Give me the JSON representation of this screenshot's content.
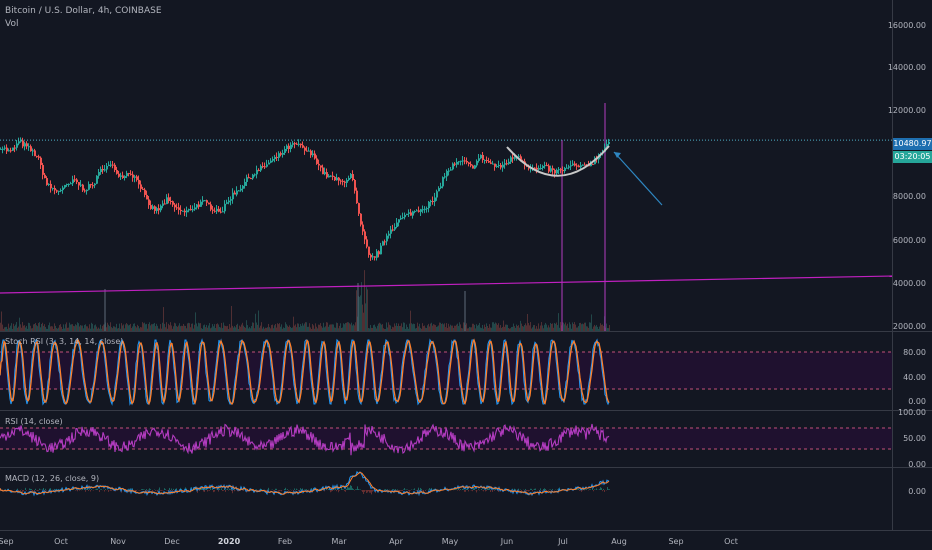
{
  "header": {
    "symbol": "Bitcoin / U.S. Dollar, 4h, COINBASE",
    "volume_label": "Vol"
  },
  "indicators": {
    "stoch_rsi": "Stoch RSI (3, 3, 14, 14, close)",
    "rsi": "RSI (14, close)",
    "macd": "MACD (12, 26, close, 9)"
  },
  "price_scale": {
    "ticks": [
      "16000.00",
      "14000.00",
      "12000.00",
      "10480.97",
      "8000.00",
      "6000.00",
      "4000.00",
      "2000.00"
    ],
    "last_price": "10480.97",
    "countdown": "03:20:05"
  },
  "stoch_scale": [
    "80.00",
    "40.00",
    "0.00"
  ],
  "rsi_scale": [
    "100.00",
    "50.00",
    "0.00"
  ],
  "macd_scale": [
    "0.00"
  ],
  "time_axis": [
    {
      "label": "Sep",
      "bold": false
    },
    {
      "label": "Oct",
      "bold": false
    },
    {
      "label": "Nov",
      "bold": false
    },
    {
      "label": "Dec",
      "bold": false
    },
    {
      "label": "2020",
      "bold": true
    },
    {
      "label": "Feb",
      "bold": false
    },
    {
      "label": "Mar",
      "bold": false
    },
    {
      "label": "Apr",
      "bold": false
    },
    {
      "label": "May",
      "bold": false
    },
    {
      "label": "Jun",
      "bold": false
    },
    {
      "label": "Jul",
      "bold": false
    },
    {
      "label": "Aug",
      "bold": false
    },
    {
      "label": "Sep",
      "bold": false
    },
    {
      "label": "Oct",
      "bold": false
    }
  ],
  "chart_data": {
    "type": "line",
    "price_path": [
      10200,
      9900,
      10400,
      10100,
      9700,
      8400,
      8100,
      8300,
      8600,
      8200,
      8400,
      9200,
      9300,
      8800,
      9000,
      8500,
      7400,
      7200,
      7700,
      7300,
      7100,
      7400,
      7600,
      7300,
      7200,
      7900,
      8300,
      8800,
      9100,
      9400,
      9700,
      10100,
      10300,
      10000,
      9700,
      8900,
      8700,
      8500,
      8900,
      6500,
      4900,
      5300,
      6200,
      6700,
      7000,
      7200,
      7400,
      7700,
      8800,
      9300,
      9500,
      9200,
      9700,
      9400,
      9200,
      9500,
      9800,
      9300,
      9100,
      9200,
      9000,
      9100,
      9300,
      9200,
      9400,
      9900,
      10480
    ],
    "resistance_level": 10480.97,
    "ylim": [
      1800,
      16800
    ],
    "colors": {
      "up": "#26a69a",
      "down": "#ef5350",
      "resistance": "#4fb0c6",
      "trendline": "#c020c0",
      "stoch_k": "#2196f3",
      "stoch_d": "#ff7f2a",
      "rsi": "#b33cc0",
      "band_fill": "#2a0d3a",
      "arrow": "#2e86c1",
      "cup": "#c8c8c8",
      "price_tag": "#1e6fb0",
      "countdown_tag": "#26a69a"
    }
  }
}
